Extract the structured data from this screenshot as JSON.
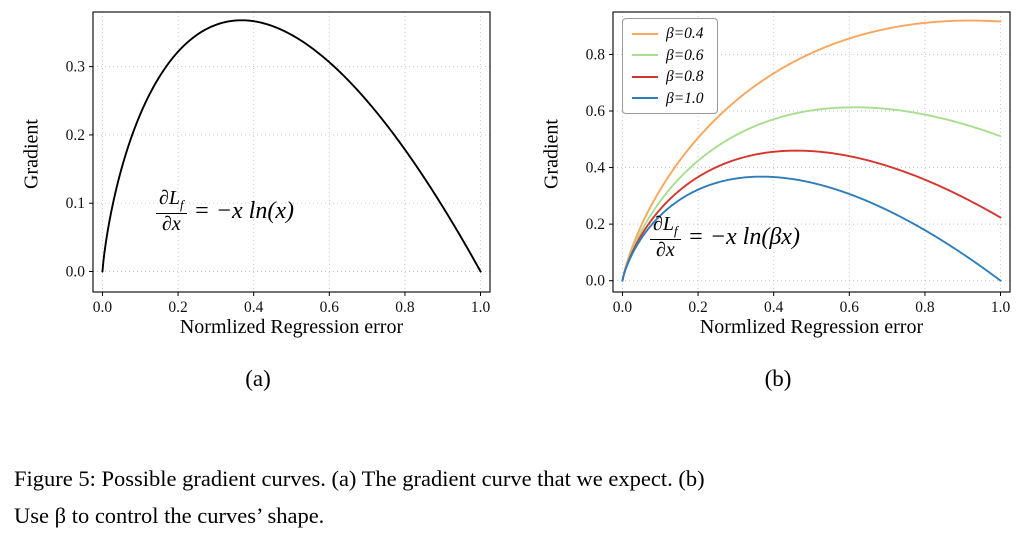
{
  "figure": {
    "sublabels": {
      "a": "(a)",
      "b": "(b)"
    },
    "caption": {
      "line1": "Figure 5: Possible gradient curves. (a) The gradient curve that we expect. (b)",
      "line2": "Use β to control the curves’ shape."
    }
  },
  "chart_data": [
    {
      "type": "line",
      "panel": "a",
      "title": "",
      "xlabel": "Normlized Regression error",
      "ylabel": "Gradient",
      "xlim": [
        -0.025,
        1.025
      ],
      "ylim": [
        -0.03,
        0.38
      ],
      "xticks": [
        0,
        0.2,
        0.4,
        0.6,
        0.8,
        1
      ],
      "yticks": [
        0,
        0.1,
        0.2,
        0.3
      ],
      "grid": true,
      "formula": "y = −x ln(x)",
      "annotation": {
        "num": "∂L",
        "num_sub": "f",
        "den": "∂x",
        "rhs": "= −x ln(x)",
        "text": "∂Lf/∂x = −x ln(x)"
      },
      "x_samples": [
        0,
        0.1,
        0.2,
        0.3,
        0.4,
        0.5,
        0.6,
        0.7,
        0.8,
        0.9,
        1.0
      ],
      "series": [
        {
          "key": "expected-gradient",
          "name": "−x ln(x)",
          "beta": 1.0,
          "color": "#000000",
          "peak": {
            "x": 0.368,
            "y": 0.368
          },
          "y_samples": [
            0,
            0.23,
            0.322,
            0.361,
            0.367,
            0.347,
            0.306,
            0.25,
            0.179,
            0.095,
            0
          ]
        }
      ]
    },
    {
      "type": "line",
      "panel": "b",
      "title": "",
      "xlabel": "Normlized Regression error",
      "ylabel": "Gradient",
      "xlim": [
        -0.025,
        1.025
      ],
      "ylim": [
        -0.04,
        0.95
      ],
      "xticks": [
        0,
        0.2,
        0.4,
        0.6,
        0.8,
        1
      ],
      "yticks": [
        0,
        0.2,
        0.4,
        0.6,
        0.8
      ],
      "grid": true,
      "formula": "y = −x ln(βx)",
      "legend_position": "upper left",
      "annotation": {
        "num": "∂L",
        "num_sub": "f",
        "den": "∂x",
        "rhs": "= −x ln(βx)",
        "text": "∂Lf/∂x = −x ln(βx)"
      },
      "x_samples": [
        0,
        0.1,
        0.2,
        0.3,
        0.4,
        0.5,
        0.6,
        0.7,
        0.8,
        0.9,
        1.0
      ],
      "series": [
        {
          "key": "beta-0.4",
          "name": "β=0.4",
          "beta": 0.4,
          "color": "#FBA65C",
          "peak": {
            "x": 0.92,
            "y": 0.92
          },
          "y_samples": [
            0,
            0.322,
            0.505,
            0.636,
            0.733,
            0.805,
            0.856,
            0.891,
            0.912,
            0.92,
            0.916
          ]
        },
        {
          "key": "beta-0.6",
          "name": "β=0.6",
          "beta": 0.6,
          "color": "#A8DE8F",
          "peak": {
            "x": 0.613,
            "y": 0.613
          },
          "y_samples": [
            0,
            0.281,
            0.424,
            0.514,
            0.571,
            0.602,
            0.613,
            0.607,
            0.587,
            0.555,
            0.511
          ]
        },
        {
          "key": "beta-0.8",
          "name": "β=0.8",
          "beta": 0.8,
          "color": "#D6352E",
          "peak": {
            "x": 0.46,
            "y": 0.46
          },
          "y_samples": [
            0,
            0.253,
            0.367,
            0.428,
            0.456,
            0.458,
            0.44,
            0.406,
            0.357,
            0.296,
            0.223
          ]
        },
        {
          "key": "beta-1.0",
          "name": "β=1.0",
          "beta": 1.0,
          "color": "#2E7EBB",
          "peak": {
            "x": 0.368,
            "y": 0.368
          },
          "y_samples": [
            0,
            0.23,
            0.322,
            0.361,
            0.367,
            0.347,
            0.306,
            0.25,
            0.179,
            0.095,
            0
          ]
        }
      ]
    }
  ]
}
